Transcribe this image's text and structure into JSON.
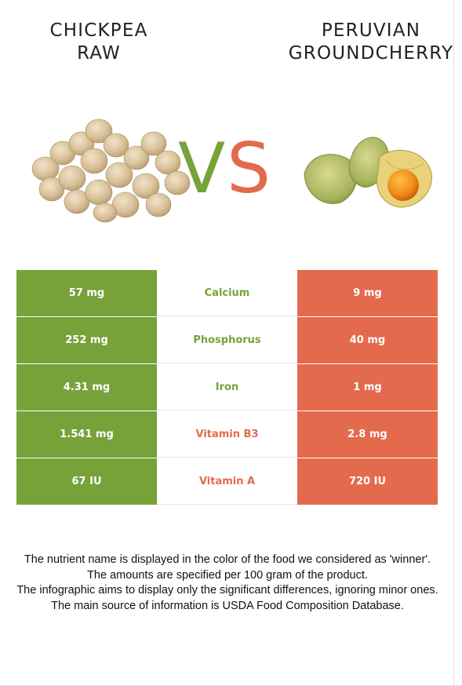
{
  "left_food": {
    "title_line1": "CHICKPEA",
    "title_line2": "RAW"
  },
  "right_food": {
    "title_line1": "PERUVIAN",
    "title_line2": "GROUNDCHERRY"
  },
  "vs": {
    "v": "V",
    "s": "S"
  },
  "colors": {
    "left": "#77a23a",
    "right": "#e46a4e"
  },
  "rows": [
    {
      "nutrient": "Calcium",
      "left": "57 mg",
      "right": "9 mg",
      "winner": "left"
    },
    {
      "nutrient": "Phosphorus",
      "left": "252 mg",
      "right": "40 mg",
      "winner": "left"
    },
    {
      "nutrient": "Iron",
      "left": "4.31 mg",
      "right": "1 mg",
      "winner": "left"
    },
    {
      "nutrient": "Vitamin B3",
      "left": "1.541 mg",
      "right": "2.8 mg",
      "winner": "right"
    },
    {
      "nutrient": "Vitamin A",
      "left": "67 IU",
      "right": "720 IU",
      "winner": "right"
    }
  ],
  "footnotes": [
    "The nutrient name is displayed in the color of the food we considered as 'winner'.",
    "The amounts are specified per 100 gram of the product.",
    "The infographic aims to display only the significant differences, ignoring minor ones.",
    "The main source of information is USDA Food Composition Database."
  ]
}
